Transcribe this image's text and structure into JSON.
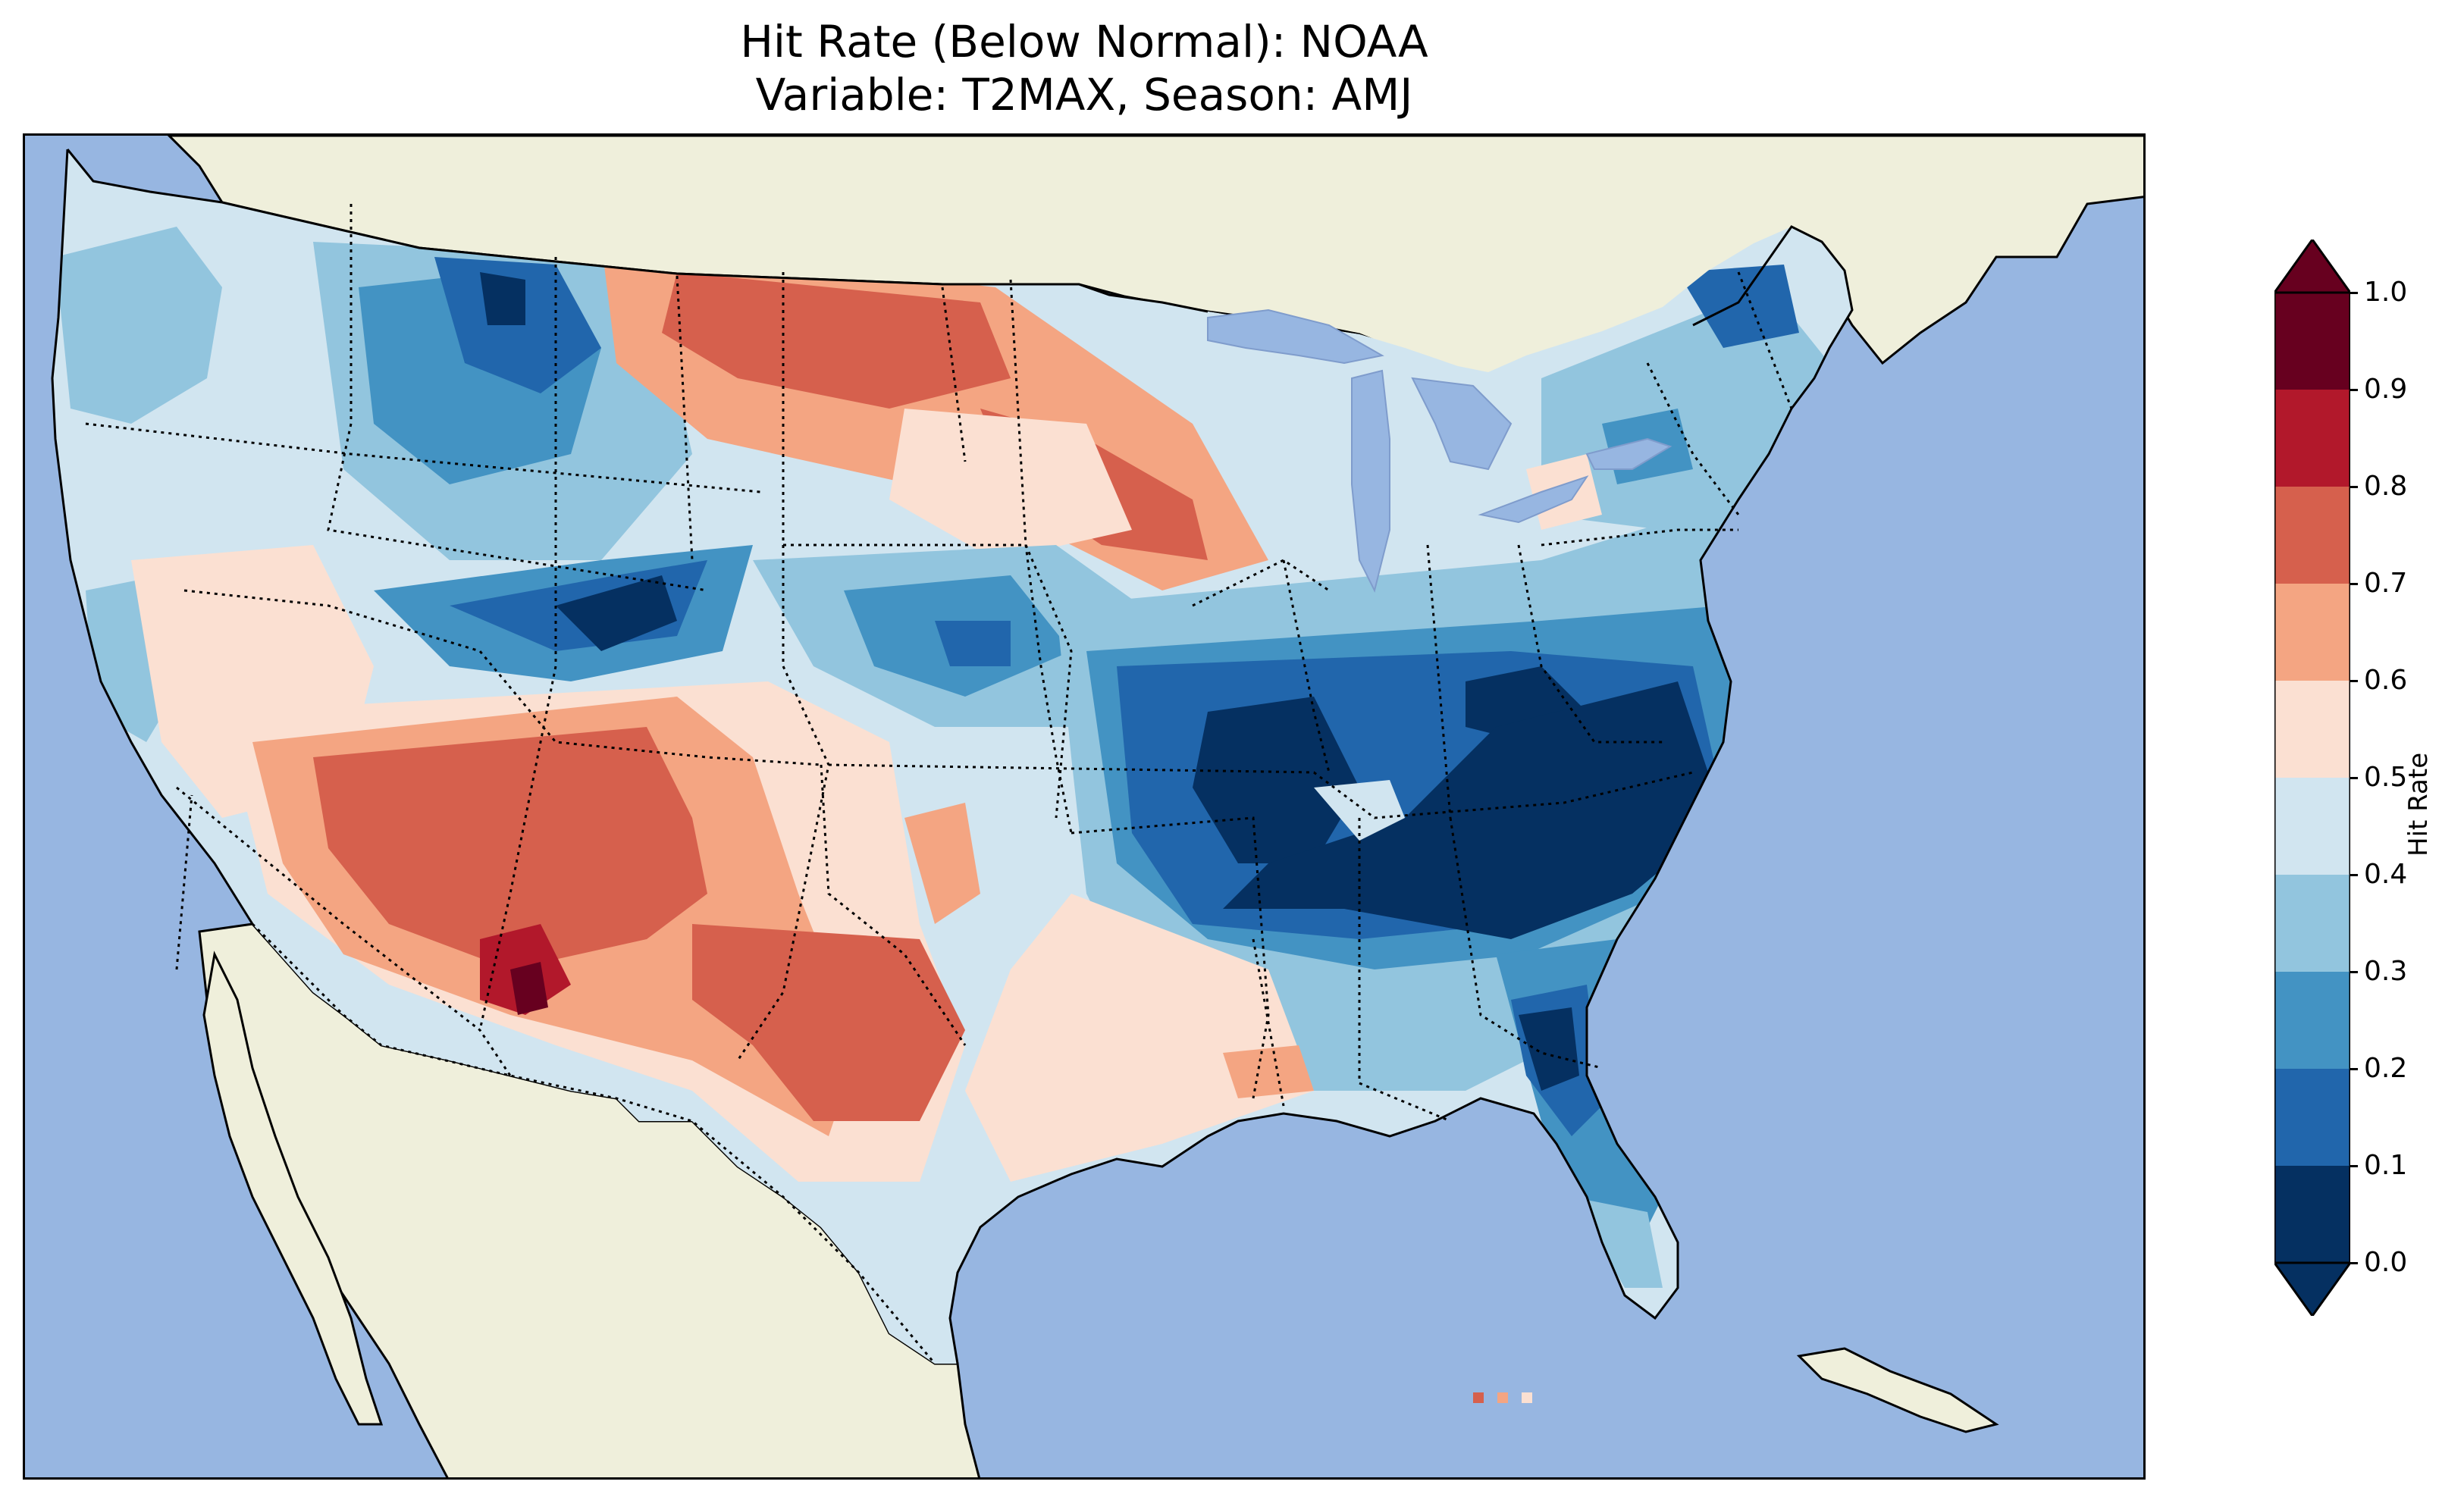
{
  "title": {
    "line1": "Hit Rate (Below Normal): NOAA",
    "line2": "Variable: T2MAX, Season: AMJ"
  },
  "colors": {
    "ocean": "#97b6e1",
    "land": "#efefdb",
    "lakes": "#97b6e1"
  },
  "colorbar": {
    "label": "Hit Rate",
    "ticks": [
      "0.0",
      "0.1",
      "0.2",
      "0.3",
      "0.4",
      "0.5",
      "0.6",
      "0.7",
      "0.8",
      "0.9",
      "1.0"
    ],
    "bins": [
      {
        "range": "0.0-0.1",
        "color": "#053061"
      },
      {
        "range": "0.1-0.2",
        "color": "#2166ac"
      },
      {
        "range": "0.2-0.3",
        "color": "#4393c3"
      },
      {
        "range": "0.3-0.4",
        "color": "#92c5de"
      },
      {
        "range": "0.4-0.5",
        "color": "#d1e5f0"
      },
      {
        "range": "0.5-0.6",
        "color": "#fbe0d2"
      },
      {
        "range": "0.6-0.7",
        "color": "#f4a582"
      },
      {
        "range": "0.7-0.8",
        "color": "#d6604d"
      },
      {
        "range": "0.8-0.9",
        "color": "#b2182b"
      },
      {
        "range": "0.9-1.0",
        "color": "#67001f"
      }
    ],
    "extend": "both"
  },
  "map": {
    "region": "Contiguous United States",
    "notable_regions": [
      {
        "name": "Southeast / Tennessee Valley / Carolinas",
        "hit_rate_bin": "0.0-0.1"
      },
      {
        "name": "Florida peninsula",
        "hit_rate_bin": "0.1-0.3"
      },
      {
        "name": "Northern Rockies (Idaho/Montana)",
        "hit_rate_bin": "0.0-0.2"
      },
      {
        "name": "Northern Plains (Dakotas/Minnesota)",
        "hit_rate_bin": "0.7-0.8"
      },
      {
        "name": "Southwest (Arizona/New Mexico/Texas)",
        "hit_rate_bin": "0.7-0.8"
      },
      {
        "name": "Southern Arizona / SW New Mexico",
        "hit_rate_bin": "0.8-1.0"
      },
      {
        "name": "Northern Maine",
        "hit_rate_bin": "0.1-0.2"
      },
      {
        "name": "Pacific Northwest / California coast",
        "hit_rate_bin": "0.3-0.5"
      }
    ]
  }
}
